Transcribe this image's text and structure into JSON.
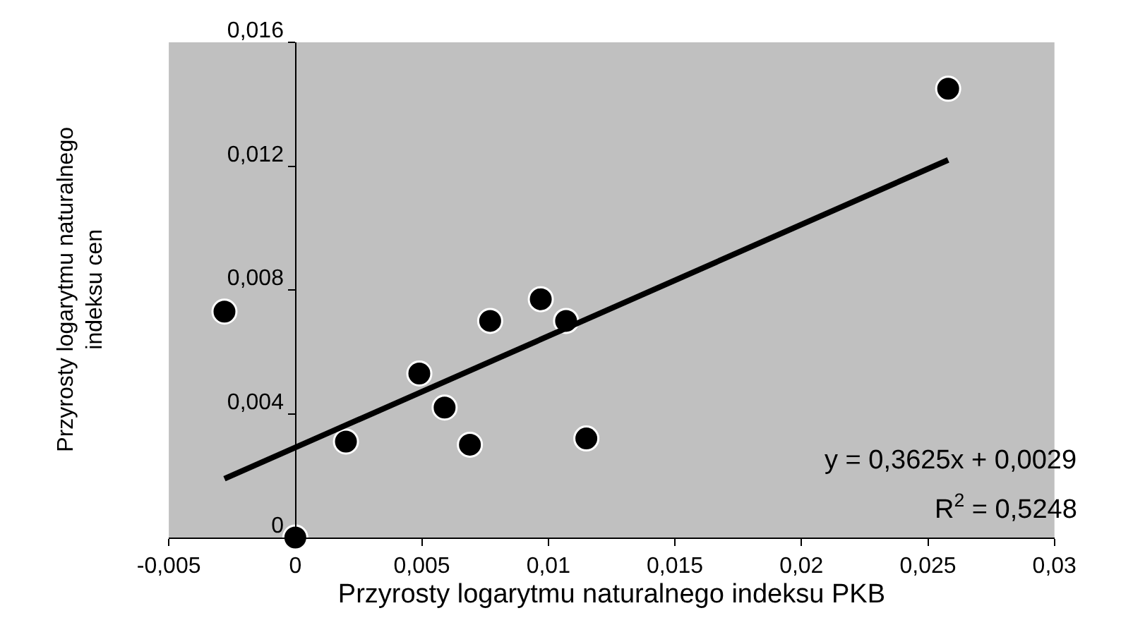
{
  "chart_data": {
    "type": "scatter",
    "xlabel": "Przyrosty logarytmu naturalnego indeksu PKB",
    "ylabel": "Przyrosty logarytmu naturalnego\nindeksu cen",
    "x": [
      -0.0028,
      0,
      0.002,
      0.0049,
      0.0059,
      0.0069,
      0.0077,
      0.0097,
      0.0107,
      0.0115,
      0.0258
    ],
    "series": [
      {
        "color": "#000000",
        "marker": "circle",
        "values": [
          0.0073,
          0,
          0.0031,
          0.0053,
          0.0042,
          0.003,
          0.007,
          0.0077,
          0.007,
          0.0032,
          0.0145
        ]
      },
      {
        "type": "line",
        "color": "#000000",
        "marker": "none",
        "line_style": "solid",
        "x": [
          -0.0028,
          0.0258
        ],
        "values": [
          0.0019,
          0.0122
        ]
      }
    ],
    "xlim": [
      -0.005,
      0.03
    ],
    "xticks": [
      {
        "value": -0.005,
        "label": "-0,005"
      },
      0,
      {
        "value": 0.005,
        "label": "0,005"
      },
      {
        "value": 0.01,
        "label": "0,01"
      },
      {
        "value": 0.015,
        "label": "0,015"
      },
      {
        "value": 0.02,
        "label": "0,02"
      },
      {
        "value": 0.025,
        "label": "0,025"
      },
      {
        "value": 0.03,
        "label": "0,03"
      }
    ],
    "ylim": [
      0,
      0.016
    ],
    "yticks": [
      0,
      {
        "value": 0.004,
        "label": "0,004"
      },
      {
        "value": 0.008,
        "label": "0,008"
      },
      {
        "value": 0.012,
        "label": "0,012"
      },
      {
        "value": 0.016,
        "label": "0,016"
      }
    ],
    "annotations": [
      "y = 0,3625x + 0,0029",
      "R$^{2}$ = 0,5248"
    ],
    "grid": false
  }
}
